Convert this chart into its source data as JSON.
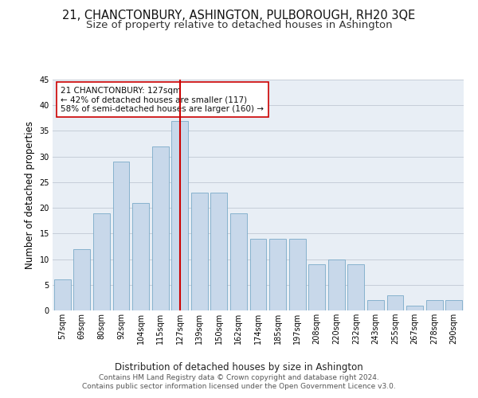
{
  "title": "21, CHANCTONBURY, ASHINGTON, PULBOROUGH, RH20 3QE",
  "subtitle": "Size of property relative to detached houses in Ashington",
  "xlabel": "Distribution of detached houses by size in Ashington",
  "ylabel": "Number of detached properties",
  "categories": [
    "57sqm",
    "69sqm",
    "80sqm",
    "92sqm",
    "104sqm",
    "115sqm",
    "127sqm",
    "139sqm",
    "150sqm",
    "162sqm",
    "174sqm",
    "185sqm",
    "197sqm",
    "208sqm",
    "220sqm",
    "232sqm",
    "243sqm",
    "255sqm",
    "267sqm",
    "278sqm",
    "290sqm"
  ],
  "values": [
    6,
    12,
    19,
    29,
    21,
    32,
    37,
    23,
    23,
    19,
    14,
    14,
    14,
    9,
    10,
    9,
    2,
    3,
    1,
    2,
    2
  ],
  "bar_color": "#c8d8ea",
  "bar_edge_color": "#7aaac8",
  "highlight_index": 6,
  "vline_color": "#cc0000",
  "annotation_text": "21 CHANCTONBURY: 127sqm\n← 42% of detached houses are smaller (117)\n58% of semi-detached houses are larger (160) →",
  "annotation_box_color": "#ffffff",
  "annotation_box_edge": "#cc0000",
  "ylim": [
    0,
    45
  ],
  "yticks": [
    0,
    5,
    10,
    15,
    20,
    25,
    30,
    35,
    40,
    45
  ],
  "fig_bg_color": "#ffffff",
  "plot_bg_color": "#e8eef5",
  "grid_color": "#c5cdd8",
  "footer_line1": "Contains HM Land Registry data © Crown copyright and database right 2024.",
  "footer_line2": "Contains public sector information licensed under the Open Government Licence v3.0.",
  "title_fontsize": 10.5,
  "subtitle_fontsize": 9.5,
  "xlabel_fontsize": 8.5,
  "ylabel_fontsize": 8.5,
  "tick_fontsize": 7,
  "annotation_fontsize": 7.5,
  "footer_fontsize": 6.5
}
